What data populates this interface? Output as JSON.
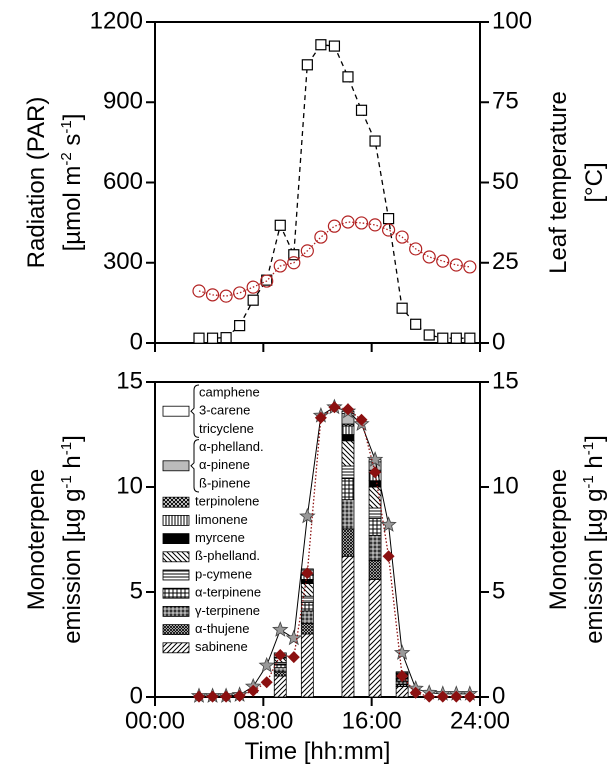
{
  "chart_data": [
    {
      "type": "line",
      "xlim": [
        0,
        24
      ],
      "xticks": [
        0,
        8,
        16,
        24
      ],
      "ylabel": [
        "Radiation (PAR)",
        [
          "[µmol m",
          "-2",
          " s",
          "-1",
          "]"
        ]
      ],
      "ylim": [
        0,
        1200
      ],
      "yticks": [
        0,
        300,
        600,
        900,
        1200
      ],
      "y2label": [
        "Leaf temperature",
        "[°C]"
      ],
      "y2lim": [
        0,
        100
      ],
      "y2ticks": [
        0,
        25,
        50,
        75,
        100
      ],
      "x": [
        3.25,
        4.25,
        5.25,
        6.25,
        7.25,
        8.25,
        9.25,
        10.25,
        11.25,
        12.25,
        13.25,
        14.25,
        15.25,
        16.25,
        17.25,
        18.25,
        19.25,
        20.25,
        21.25,
        22.25,
        23.25
      ],
      "series": [
        {
          "color": "#000000",
          "marker": "square",
          "line": "dashed",
          "values": [
            18,
            18,
            20,
            65,
            160,
            235,
            440,
            330,
            1040,
            1115,
            1110,
            995,
            870,
            755,
            465,
            130,
            70,
            30,
            18,
            18,
            18
          ]
        },
        {
          "color": "#b22222",
          "marker": "circle",
          "line": "dotted",
          "axis": "y2",
          "values": [
            16.2,
            15,
            14.6,
            15.6,
            17.4,
            19.3,
            24,
            25,
            28.7,
            33,
            36.4,
            37.7,
            37.4,
            36.8,
            35.2,
            33,
            29.3,
            26.8,
            25.5,
            24.3,
            23.7
          ]
        }
      ]
    },
    {
      "type": "combo",
      "xlim": [
        0,
        24
      ],
      "xticks": [
        {
          "value": 0,
          "label": "00:00"
        },
        {
          "value": 8,
          "label": "08:00"
        },
        {
          "value": 16,
          "label": "16:00"
        },
        {
          "value": 24,
          "label": "24:00"
        }
      ],
      "xlabel": "Time [hh:mm]",
      "ylabel": [
        "Monoterpene",
        [
          "emission [µg g",
          "-1",
          " h",
          "-1",
          "]"
        ]
      ],
      "ylim": [
        0,
        15
      ],
      "yticks": [
        0,
        5,
        10,
        15
      ],
      "y2label": [
        "Monoterpene",
        [
          "emission [µg g",
          "-1",
          " h",
          "-1",
          "]"
        ]
      ],
      "y2lim": [
        0,
        15
      ],
      "y2ticks": [
        0,
        5,
        10,
        15
      ],
      "bar_x": [
        9.25,
        11.25,
        14.25,
        16.25,
        18.25
      ],
      "bar_series": [
        {
          "name": [
            "camphene",
            "3-carene",
            "tricyclene"
          ],
          "pattern": "white",
          "values": [
            0,
            0.05,
            0.1,
            0.1,
            0
          ]
        },
        {
          "name": [
            "α-phelland.",
            "α-pinene",
            "ß-pinene"
          ],
          "pattern": "gray",
          "values": [
            0.1,
            0.2,
            0.5,
            0.4,
            0.05
          ]
        },
        {
          "name": "terpinolene",
          "pattern": "check",
          "values": [
            0,
            0.05,
            0.1,
            0.1,
            0
          ]
        },
        {
          "name": "limonene",
          "pattern": "vlines",
          "values": [
            0.1,
            0.2,
            0.4,
            0.4,
            0.05
          ]
        },
        {
          "name": "myrcene",
          "pattern": "black",
          "values": [
            0.05,
            0.2,
            0.3,
            0.3,
            0.1
          ]
        },
        {
          "name": "ß-phelland.",
          "pattern": "backdiag",
          "values": [
            0.2,
            0.6,
            1.2,
            1.0,
            0.1
          ]
        },
        {
          "name": "p-cymene",
          "pattern": "hlines",
          "values": [
            0.1,
            0.3,
            0.6,
            0.5,
            0.05
          ]
        },
        {
          "name": "α-terpinene",
          "pattern": "grid",
          "values": [
            0.15,
            0.4,
            1.0,
            0.8,
            0.1
          ]
        },
        {
          "name": "γ-terpinene",
          "pattern": "darkgrid",
          "values": [
            0.2,
            0.6,
            1.4,
            1.2,
            0.15
          ]
        },
        {
          "name": "α-thujene",
          "pattern": "xhatch",
          "values": [
            0.2,
            0.5,
            1.3,
            0.9,
            0.1
          ]
        },
        {
          "name": "sabinene",
          "pattern": "diag",
          "values": [
            1.0,
            3.0,
            6.7,
            5.6,
            0.5
          ]
        }
      ],
      "x": [
        3.25,
        4.25,
        5.25,
        6.25,
        7.25,
        8.25,
        9.25,
        10.25,
        11.25,
        12.25,
        13.25,
        14.25,
        15.25,
        16.25,
        17.25,
        18.25,
        19.25,
        20.25,
        21.25,
        22.25,
        23.25
      ],
      "series": [
        {
          "color": "#999999",
          "marker": "star",
          "line": "solid",
          "values": [
            0.05,
            0.05,
            0.05,
            0.1,
            0.5,
            1.5,
            3.2,
            2.8,
            8.6,
            13.4,
            13.8,
            13.6,
            13.0,
            11.3,
            8.2,
            2.1,
            0.4,
            0.2,
            0.15,
            0.15,
            0.15
          ]
        },
        {
          "color": "#8b1010",
          "marker": "diamond",
          "line": "dotted",
          "values": [
            0.02,
            0.02,
            0.02,
            0.05,
            0.3,
            0.7,
            2.0,
            1.9,
            5.9,
            13.3,
            13.8,
            13.7,
            13.2,
            10.7,
            6.7,
            1.0,
            0.2,
            0.02,
            0.02,
            0.02,
            0.02
          ]
        }
      ]
    }
  ]
}
